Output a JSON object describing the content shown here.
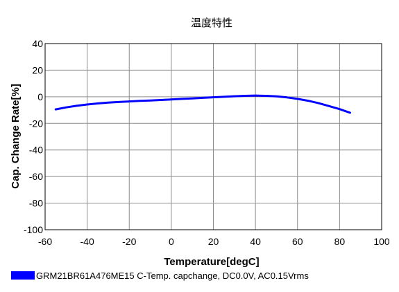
{
  "chart_data": {
    "type": "line",
    "title": "温度特性",
    "xlabel": "Temperature[degC]",
    "ylabel": "Cap. Change Rate[%]",
    "xlim": [
      -60,
      100
    ],
    "ylim": [
      -100,
      40
    ],
    "xticks": [
      -60,
      -40,
      -20,
      0,
      20,
      40,
      60,
      80,
      100
    ],
    "yticks": [
      40,
      20,
      0,
      -20,
      -40,
      -60,
      -80,
      -100
    ],
    "grid": true,
    "legend_position": "bottom-left",
    "series": [
      {
        "name": "GRM21BR61A476ME15 C-Temp. capchange, DC0.0V, AC0.15Vrms",
        "color": "#0000ff",
        "x": [
          -55,
          -50,
          -45,
          -40,
          -35,
          -30,
          -25,
          -20,
          -15,
          -10,
          -5,
          0,
          5,
          10,
          15,
          20,
          25,
          30,
          35,
          40,
          45,
          50,
          55,
          60,
          65,
          70,
          75,
          80,
          85
        ],
        "y": [
          -9.5,
          -8.0,
          -6.8,
          -5.8,
          -5.0,
          -4.4,
          -3.9,
          -3.5,
          -3.1,
          -2.8,
          -2.4,
          -2.0,
          -1.6,
          -1.2,
          -0.8,
          -0.4,
          0.0,
          0.4,
          0.7,
          0.9,
          0.7,
          0.3,
          -0.5,
          -1.6,
          -3.0,
          -4.8,
          -7.0,
          -9.3,
          -12.0
        ]
      }
    ]
  }
}
